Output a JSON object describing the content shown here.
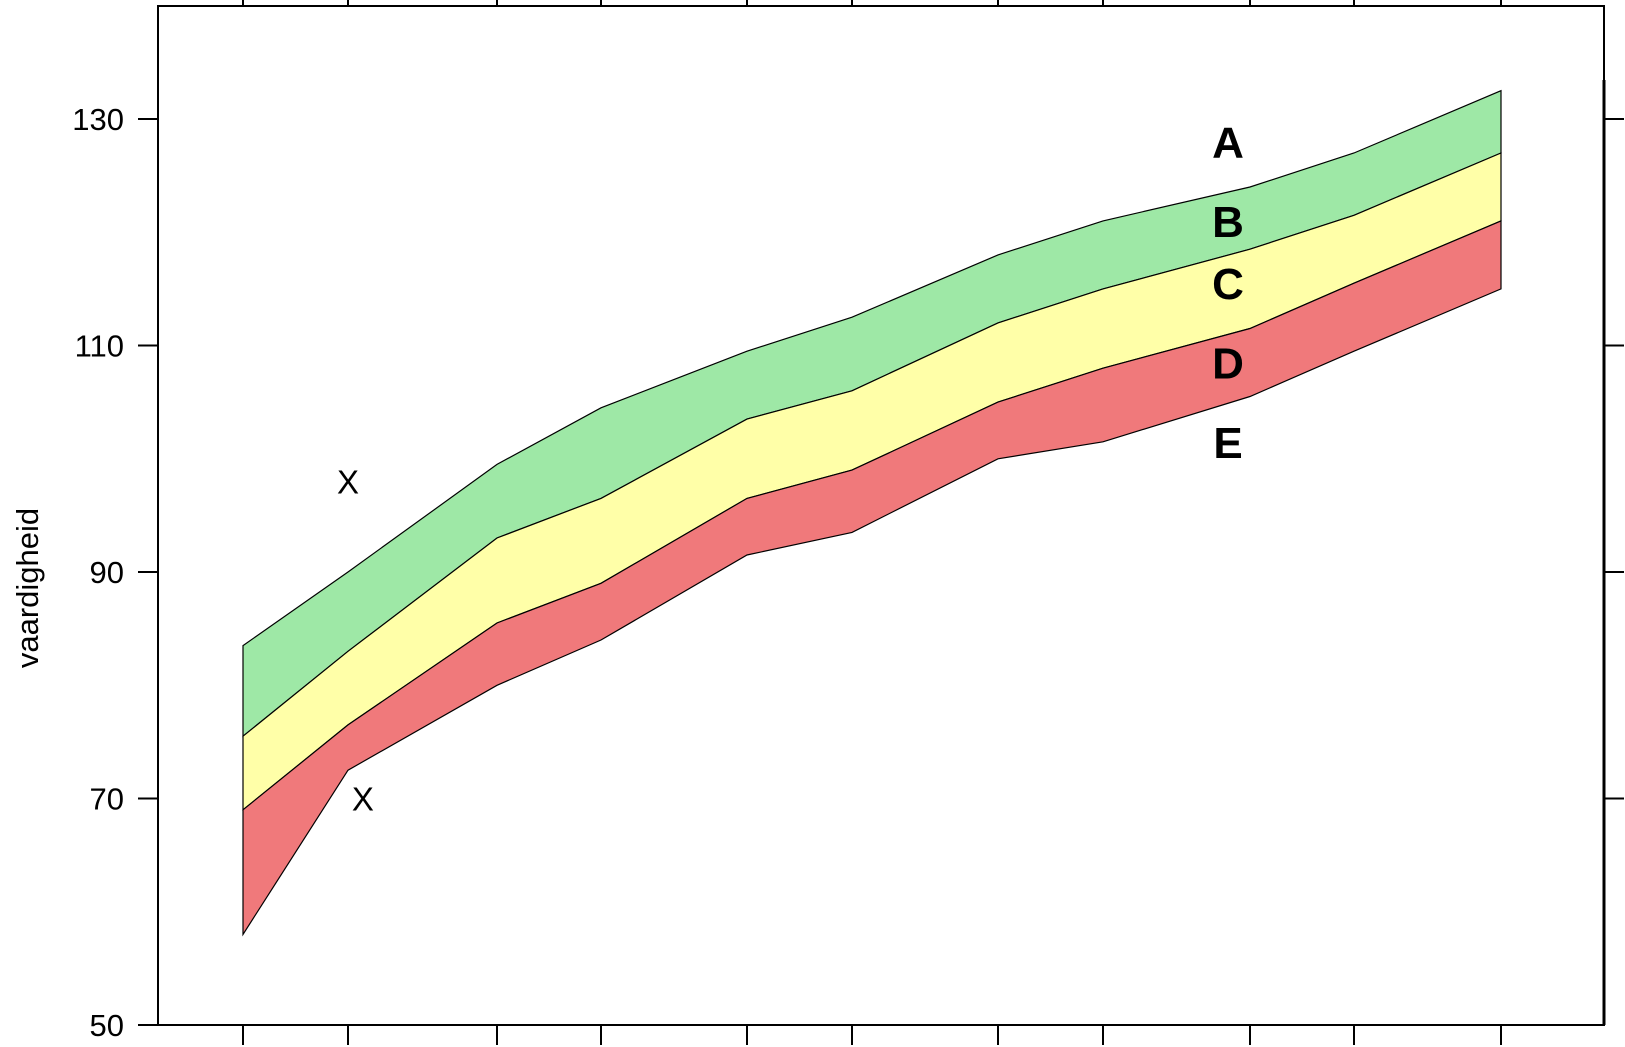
{
  "chart_data": {
    "type": "area",
    "title": "",
    "xlabel": "",
    "ylabel": "vaardigheid",
    "ylim": [
      50,
      140
    ],
    "yticks": [
      "50",
      "70",
      "90",
      "110",
      "130"
    ],
    "grid": false,
    "x": [
      1,
      2,
      3,
      4,
      5,
      6,
      7,
      8,
      9,
      10,
      11
    ],
    "boundaries": {
      "top": [
        83.5,
        90.0,
        99.5,
        104.5,
        109.5,
        112.5,
        118.0,
        121.0,
        124.0,
        127.0,
        132.5
      ],
      "green_yellow": [
        75.5,
        83.0,
        93.0,
        96.5,
        103.5,
        106.0,
        112.0,
        115.0,
        118.5,
        121.5,
        127.0
      ],
      "yellow_red": [
        69.0,
        76.5,
        85.5,
        89.0,
        96.5,
        99.0,
        105.0,
        108.0,
        111.5,
        115.5,
        121.0
      ],
      "bottom": [
        58.0,
        72.5,
        80.0,
        84.0,
        91.5,
        93.5,
        100.0,
        101.5,
        105.5,
        109.5,
        115.0
      ]
    },
    "bands": [
      {
        "from": "green_yellow",
        "to": "top",
        "color": "#9ee8a6"
      },
      {
        "from": "yellow_red",
        "to": "green_yellow",
        "color": "#ffffa8"
      },
      {
        "from": "bottom",
        "to": "yellow_red",
        "color": "#f0797b"
      }
    ],
    "band_labels": [
      {
        "text": "A",
        "y": 128
      },
      {
        "text": "B",
        "y": 121
      },
      {
        "text": "C",
        "y": 115.5
      },
      {
        "text": "D",
        "y": 108.5
      },
      {
        "text": "E",
        "y": 101.5
      }
    ],
    "markers": [
      {
        "symbol": "X",
        "x": 2.0,
        "y": 98
      },
      {
        "symbol": "X",
        "x": 2.1,
        "y": 70
      }
    ]
  }
}
